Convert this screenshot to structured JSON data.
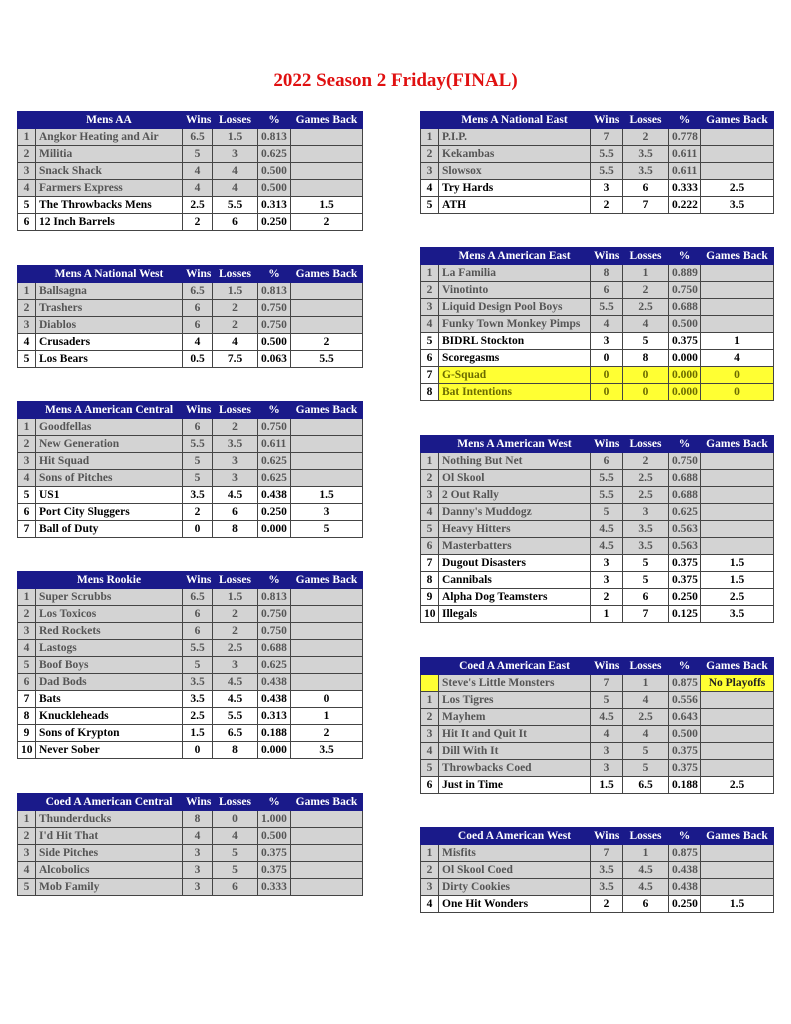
{
  "title": "2022 Season 2 Friday(FINAL)",
  "columns": {
    "wins": "Wins",
    "losses": "Losses",
    "pct": "%",
    "gb": "Games Back"
  },
  "colors": {
    "header": "#1a1a8a",
    "title": "#e01010",
    "highlight": "#ffff33",
    "grey_row": "#d3d3d3"
  },
  "tables": [
    {
      "name": "Mens AA",
      "side": "left",
      "rows": [
        {
          "rank": "1",
          "team": "Angkor Heating and Air",
          "w": "6.5",
          "l": "1.5",
          "pct": "0.813",
          "gb": "",
          "style": "g"
        },
        {
          "rank": "2",
          "team": "Militia",
          "w": "5",
          "l": "3",
          "pct": "0.625",
          "gb": "",
          "style": "g"
        },
        {
          "rank": "3",
          "team": "Snack Shack",
          "w": "4",
          "l": "4",
          "pct": "0.500",
          "gb": "",
          "style": "g"
        },
        {
          "rank": "4",
          "team": "Farmers Express",
          "w": "4",
          "l": "4",
          "pct": "0.500",
          "gb": "",
          "style": "g"
        },
        {
          "rank": "5",
          "team": "The Throwbacks Mens",
          "w": "2.5",
          "l": "5.5",
          "pct": "0.313",
          "gb": "1.5",
          "style": "w"
        },
        {
          "rank": "6",
          "team": "12 Inch Barrels",
          "w": "2",
          "l": "6",
          "pct": "0.250",
          "gb": "2",
          "style": "w"
        }
      ]
    },
    {
      "name": "Mens A National West",
      "side": "left",
      "rows": [
        {
          "rank": "1",
          "team": "Ballsagna",
          "w": "6.5",
          "l": "1.5",
          "pct": "0.813",
          "gb": "",
          "style": "g"
        },
        {
          "rank": "2",
          "team": "Trashers",
          "w": "6",
          "l": "2",
          "pct": "0.750",
          "gb": "",
          "style": "g"
        },
        {
          "rank": "3",
          "team": "Diablos",
          "w": "6",
          "l": "2",
          "pct": "0.750",
          "gb": "",
          "style": "g"
        },
        {
          "rank": "4",
          "team": "Crusaders",
          "w": "4",
          "l": "4",
          "pct": "0.500",
          "gb": "2",
          "style": "w"
        },
        {
          "rank": "5",
          "team": "Los Bears",
          "w": "0.5",
          "l": "7.5",
          "pct": "0.063",
          "gb": "5.5",
          "style": "w"
        }
      ]
    },
    {
      "name": "Mens A American Central",
      "side": "left",
      "rows": [
        {
          "rank": "1",
          "team": "Goodfellas",
          "w": "6",
          "l": "2",
          "pct": "0.750",
          "gb": "",
          "style": "g"
        },
        {
          "rank": "2",
          "team": "New Generation",
          "w": "5.5",
          "l": "3.5",
          "pct": "0.611",
          "gb": "",
          "style": "g"
        },
        {
          "rank": "3",
          "team": "Hit Squad",
          "w": "5",
          "l": "3",
          "pct": "0.625",
          "gb": "",
          "style": "g"
        },
        {
          "rank": "4",
          "team": "Sons of Pitches",
          "w": "5",
          "l": "3",
          "pct": "0.625",
          "gb": "",
          "style": "g"
        },
        {
          "rank": "5",
          "team": "US1",
          "w": "3.5",
          "l": "4.5",
          "pct": "0.438",
          "gb": "1.5",
          "style": "w"
        },
        {
          "rank": "6",
          "team": "Port City Sluggers",
          "w": "2",
          "l": "6",
          "pct": "0.250",
          "gb": "3",
          "style": "w"
        },
        {
          "rank": "7",
          "team": "Ball of Duty",
          "w": "0",
          "l": "8",
          "pct": "0.000",
          "gb": "5",
          "style": "w"
        }
      ]
    },
    {
      "name": "Mens Rookie",
      "side": "left",
      "rows": [
        {
          "rank": "1",
          "team": "Super Scrubbs",
          "w": "6.5",
          "l": "1.5",
          "pct": "0.813",
          "gb": "",
          "style": "g"
        },
        {
          "rank": "2",
          "team": "Los Toxicos",
          "w": "6",
          "l": "2",
          "pct": "0.750",
          "gb": "",
          "style": "g"
        },
        {
          "rank": "3",
          "team": "Red Rockets",
          "w": "6",
          "l": "2",
          "pct": "0.750",
          "gb": "",
          "style": "g"
        },
        {
          "rank": "4",
          "team": "Lastogs",
          "w": "5.5",
          "l": "2.5",
          "pct": "0.688",
          "gb": "",
          "style": "g"
        },
        {
          "rank": "5",
          "team": "Boof Boys",
          "w": "5",
          "l": "3",
          "pct": "0.625",
          "gb": "",
          "style": "g"
        },
        {
          "rank": "6",
          "team": "Dad Bods",
          "w": "3.5",
          "l": "4.5",
          "pct": "0.438",
          "gb": "",
          "style": "g"
        },
        {
          "rank": "7",
          "team": "Bats",
          "w": "3.5",
          "l": "4.5",
          "pct": "0.438",
          "gb": "0",
          "style": "w"
        },
        {
          "rank": "8",
          "team": "Knuckleheads",
          "w": "2.5",
          "l": "5.5",
          "pct": "0.313",
          "gb": "1",
          "style": "w"
        },
        {
          "rank": "9",
          "team": "Sons of Krypton",
          "w": "1.5",
          "l": "6.5",
          "pct": "0.188",
          "gb": "2",
          "style": "w"
        },
        {
          "rank": "10",
          "team": "Never Sober",
          "w": "0",
          "l": "8",
          "pct": "0.000",
          "gb": "3.5",
          "style": "w"
        }
      ]
    },
    {
      "name": "Coed A American Central",
      "side": "left",
      "rows": [
        {
          "rank": "1",
          "team": "Thunderducks",
          "w": "8",
          "l": "0",
          "pct": "1.000",
          "gb": "",
          "style": "g"
        },
        {
          "rank": "2",
          "team": "I'd Hit That",
          "w": "4",
          "l": "4",
          "pct": "0.500",
          "gb": "",
          "style": "g"
        },
        {
          "rank": "3",
          "team": "Side Pitches",
          "w": "3",
          "l": "5",
          "pct": "0.375",
          "gb": "",
          "style": "g"
        },
        {
          "rank": "4",
          "team": "Alcobolics",
          "w": "3",
          "l": "5",
          "pct": "0.375",
          "gb": "",
          "style": "g"
        },
        {
          "rank": "5",
          "team": "Mob Family",
          "w": "3",
          "l": "6",
          "pct": "0.333",
          "gb": "",
          "style": "g"
        }
      ]
    },
    {
      "name": "Mens A National East",
      "side": "right",
      "rows": [
        {
          "rank": "1",
          "team": "P.I.P.",
          "w": "7",
          "l": "2",
          "pct": "0.778",
          "gb": "",
          "style": "g"
        },
        {
          "rank": "2",
          "team": "Kekambas",
          "w": "5.5",
          "l": "3.5",
          "pct": "0.611",
          "gb": "",
          "style": "g"
        },
        {
          "rank": "3",
          "team": "Slowsox",
          "w": "5.5",
          "l": "3.5",
          "pct": "0.611",
          "gb": "",
          "style": "g"
        },
        {
          "rank": "4",
          "team": "Try Hards",
          "w": "3",
          "l": "6",
          "pct": "0.333",
          "gb": "2.5",
          "style": "w"
        },
        {
          "rank": "5",
          "team": "ATH",
          "w": "2",
          "l": "7",
          "pct": "0.222",
          "gb": "3.5",
          "style": "w"
        }
      ]
    },
    {
      "name": "Mens A American East",
      "side": "right",
      "rows": [
        {
          "rank": "1",
          "team": "La Familia",
          "w": "8",
          "l": "1",
          "pct": "0.889",
          "gb": "",
          "style": "g"
        },
        {
          "rank": "2",
          "team": "Vinotinto",
          "w": "6",
          "l": "2",
          "pct": "0.750",
          "gb": "",
          "style": "g"
        },
        {
          "rank": "3",
          "team": "Liquid Design Pool Boys",
          "w": "5.5",
          "l": "2.5",
          "pct": "0.688",
          "gb": "",
          "style": "g"
        },
        {
          "rank": "4",
          "team": "Funky Town Monkey Pimps",
          "w": "4",
          "l": "4",
          "pct": "0.500",
          "gb": "",
          "style": "g"
        },
        {
          "rank": "5",
          "team": "BIDRL Stockton",
          "w": "3",
          "l": "5",
          "pct": "0.375",
          "gb": "1",
          "style": "w"
        },
        {
          "rank": "6",
          "team": "Scoregasms",
          "w": "0",
          "l": "8",
          "pct": "0.000",
          "gb": "4",
          "style": "w"
        },
        {
          "rank": "7",
          "team": "G-Squad",
          "w": "0",
          "l": "0",
          "pct": "0.000",
          "gb": "0",
          "style": "y"
        },
        {
          "rank": "8",
          "team": "Bat Intentions",
          "w": "0",
          "l": "0",
          "pct": "0.000",
          "gb": "0",
          "style": "y"
        }
      ]
    },
    {
      "name": "Mens A American West",
      "side": "right",
      "rows": [
        {
          "rank": "1",
          "team": "Nothing But Net",
          "w": "6",
          "l": "2",
          "pct": "0.750",
          "gb": "",
          "style": "g"
        },
        {
          "rank": "2",
          "team": "Ol Skool",
          "w": "5.5",
          "l": "2.5",
          "pct": "0.688",
          "gb": "",
          "style": "g"
        },
        {
          "rank": "3",
          "team": "2 Out Rally",
          "w": "5.5",
          "l": "2.5",
          "pct": "0.688",
          "gb": "",
          "style": "g"
        },
        {
          "rank": "4",
          "team": "Danny's Muddogz",
          "w": "5",
          "l": "3",
          "pct": "0.625",
          "gb": "",
          "style": "g"
        },
        {
          "rank": "5",
          "team": "Heavy Hitters",
          "w": "4.5",
          "l": "3.5",
          "pct": "0.563",
          "gb": "",
          "style": "g"
        },
        {
          "rank": "6",
          "team": "Masterbatters",
          "w": "4.5",
          "l": "3.5",
          "pct": "0.563",
          "gb": "",
          "style": "g"
        },
        {
          "rank": "7",
          "team": "Dugout Disasters",
          "w": "3",
          "l": "5",
          "pct": "0.375",
          "gb": "1.5",
          "style": "w"
        },
        {
          "rank": "8",
          "team": "Cannibals",
          "w": "3",
          "l": "5",
          "pct": "0.375",
          "gb": "1.5",
          "style": "w"
        },
        {
          "rank": "9",
          "team": "Alpha Dog Teamsters",
          "w": "2",
          "l": "6",
          "pct": "0.250",
          "gb": "2.5",
          "style": "w"
        },
        {
          "rank": "10",
          "team": "Illegals",
          "w": "1",
          "l": "7",
          "pct": "0.125",
          "gb": "3.5",
          "style": "w"
        }
      ]
    },
    {
      "name": "Coed A American East",
      "side": "right",
      "rows": [
        {
          "rank": "",
          "team": "Steve's Little Monsters",
          "w": "7",
          "l": "1",
          "pct": "0.875",
          "gb": "No Playoffs",
          "style": "sp"
        },
        {
          "rank": "1",
          "team": "Los Tigres",
          "w": "5",
          "l": "4",
          "pct": "0.556",
          "gb": "",
          "style": "g"
        },
        {
          "rank": "2",
          "team": "Mayhem",
          "w": "4.5",
          "l": "2.5",
          "pct": "0.643",
          "gb": "",
          "style": "g"
        },
        {
          "rank": "3",
          "team": "Hit It and Quit It",
          "w": "4",
          "l": "4",
          "pct": "0.500",
          "gb": "",
          "style": "g"
        },
        {
          "rank": "4",
          "team": "Dill With It",
          "w": "3",
          "l": "5",
          "pct": "0.375",
          "gb": "",
          "style": "g"
        },
        {
          "rank": "5",
          "team": "Throwbacks Coed",
          "w": "3",
          "l": "5",
          "pct": "0.375",
          "gb": "",
          "style": "g"
        },
        {
          "rank": "6",
          "team": "Just in Time",
          "w": "1.5",
          "l": "6.5",
          "pct": "0.188",
          "gb": "2.5",
          "style": "w"
        }
      ]
    },
    {
      "name": "Coed A American West",
      "side": "right",
      "rows": [
        {
          "rank": "1",
          "team": "Misfits",
          "w": "7",
          "l": "1",
          "pct": "0.875",
          "gb": "",
          "style": "g"
        },
        {
          "rank": "2",
          "team": "Ol Skool Coed",
          "w": "3.5",
          "l": "4.5",
          "pct": "0.438",
          "gb": "",
          "style": "g"
        },
        {
          "rank": "3",
          "team": "Dirty Cookies",
          "w": "3.5",
          "l": "4.5",
          "pct": "0.438",
          "gb": "",
          "style": "g"
        },
        {
          "rank": "4",
          "team": "One Hit Wonders",
          "w": "2",
          "l": "6",
          "pct": "0.250",
          "gb": "1.5",
          "style": "w"
        }
      ]
    }
  ]
}
